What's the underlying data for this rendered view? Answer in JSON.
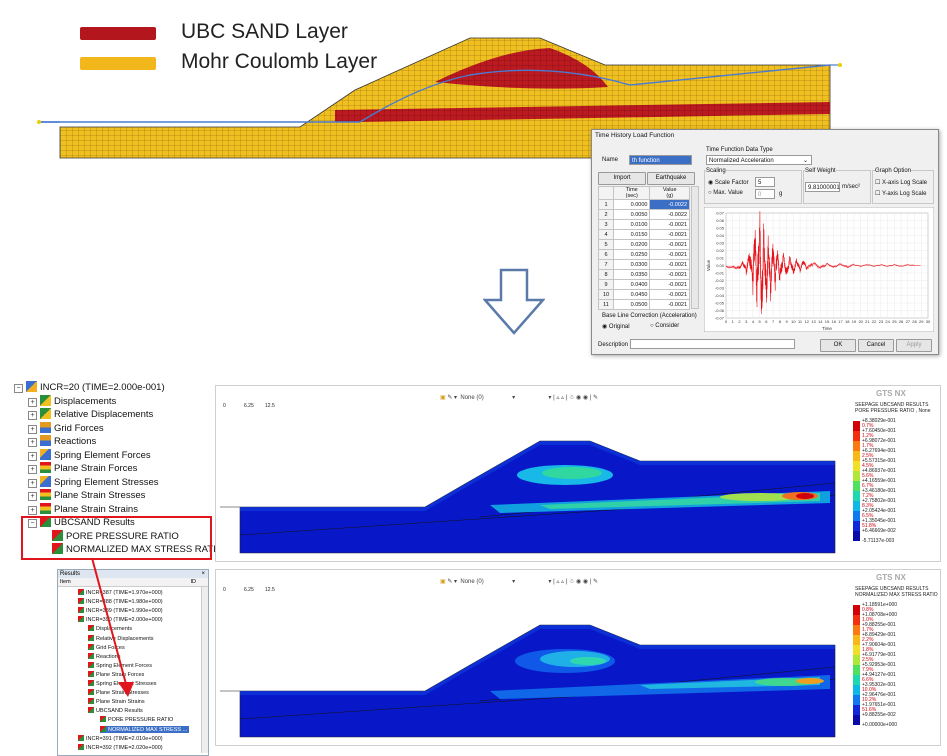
{
  "legend": {
    "items": [
      {
        "label": "UBC SAND Layer",
        "color": "#b3161c"
      },
      {
        "label": "Mohr Coulomb Layer",
        "color": "#f2b71a"
      }
    ]
  },
  "dialog": {
    "title": "Time History Load Function",
    "name_label": "Name",
    "name_value": "th function",
    "tab_import": "Import",
    "tab_earthquake": "Earthquake",
    "col_time": "Time\n(sec)",
    "col_time_a": "Time",
    "col_time_b": "(sec)",
    "col_value_a": "Value",
    "col_value_b": "(g)",
    "rows": [
      {
        "n": "1",
        "t": "0.0000",
        "v": "-0.0022"
      },
      {
        "n": "2",
        "t": "0.0050",
        "v": "-0.0022"
      },
      {
        "n": "3",
        "t": "0.0100",
        "v": "-0.0021"
      },
      {
        "n": "4",
        "t": "0.0150",
        "v": "-0.0021"
      },
      {
        "n": "5",
        "t": "0.0200",
        "v": "-0.0021"
      },
      {
        "n": "6",
        "t": "0.0250",
        "v": "-0.0021"
      },
      {
        "n": "7",
        "t": "0.0300",
        "v": "-0.0021"
      },
      {
        "n": "8",
        "t": "0.0350",
        "v": "-0.0021"
      },
      {
        "n": "9",
        "t": "0.0400",
        "v": "-0.0021"
      },
      {
        "n": "10",
        "t": "0.0450",
        "v": "-0.0021"
      },
      {
        "n": "11",
        "t": "0.0500",
        "v": "-0.0021"
      }
    ],
    "data_type_label": "Time Function Data Type",
    "data_type_value": "Normalized Acceleration",
    "scaling_label": "Scaling",
    "scale_factor_label": "Scale Factor",
    "scale_factor_value": "5",
    "max_value_label": "Max. Value",
    "max_value_value": "0",
    "max_value_unit": "g",
    "self_weight_label": "Self Weight",
    "self_weight_value": "9.81000001",
    "self_weight_unit": "m/sec²",
    "graph_option_label": "Graph Option",
    "xlog_label": "X-axis Log Scale",
    "ylog_label": "Y-axis Log Scale",
    "baseline_label": "Base Line Correction (Acceleration)",
    "original_label": "Original",
    "consider_label": "Consider",
    "description_label": "Description",
    "ok_label": "OK",
    "cancel_label": "Cancel",
    "apply_label": "Apply",
    "chart_y_label": "Value",
    "chart_x_label": "Time"
  },
  "chart_data": {
    "type": "line",
    "title": "",
    "xlabel": "Time",
    "ylabel": "Value",
    "xlim": [
      0,
      30
    ],
    "ylim": [
      -0.07,
      0.07
    ],
    "x_ticks": [
      "0",
      "1",
      "2",
      "3",
      "4",
      "5",
      "6",
      "7",
      "8",
      "9",
      "10",
      "11",
      "12",
      "13",
      "14",
      "15",
      "16",
      "17",
      "18",
      "19",
      "20",
      "21",
      "22",
      "23",
      "24",
      "25",
      "26",
      "27",
      "28",
      "29",
      "30"
    ],
    "y_ticks": [
      "0.07",
      "0.06",
      "0.05",
      "0.04",
      "0.03",
      "0.02",
      "0.01",
      "0.00",
      "-0.01",
      "-0.02",
      "-0.03",
      "-0.04",
      "-0.05",
      "-0.06",
      "-0.07"
    ],
    "series": [
      {
        "color": "#e8141c",
        "x": [
          0,
          1,
          2,
          2.5,
          3,
          3.5,
          4,
          4.3,
          4.6,
          5,
          5.3,
          5.6,
          6,
          6.3,
          6.6,
          7,
          7.3,
          7.6,
          8,
          8.5,
          9,
          9.5,
          10,
          10.5,
          11,
          11.5,
          12,
          13,
          14,
          15,
          16,
          17,
          18,
          19,
          20,
          21,
          22,
          23,
          24,
          25,
          26,
          27,
          28,
          29
        ],
        "y": [
          -0.002,
          -0.002,
          -0.003,
          0.004,
          -0.006,
          0.012,
          -0.02,
          0.035,
          -0.04,
          0.05,
          -0.055,
          0.038,
          -0.035,
          0.025,
          -0.03,
          0.02,
          -0.022,
          0.015,
          -0.016,
          0.012,
          -0.01,
          0.009,
          -0.008,
          0.006,
          -0.006,
          0.005,
          -0.004,
          0.003,
          -0.003,
          0.002,
          -0.002,
          0.002,
          -0.002,
          0.001,
          -0.001,
          0.001,
          -0.001,
          0.001,
          -0.001,
          0.001,
          -0.001,
          0.001,
          0,
          0
        ]
      }
    ]
  },
  "tree": {
    "root": "INCR=20 (TIME=2.000e-001)",
    "items": [
      {
        "label": "Displacements",
        "icon": "displacement-icon"
      },
      {
        "label": "Relative Displacements",
        "icon": "displacement-icon"
      },
      {
        "label": "Grid Forces",
        "icon": "force-icon"
      },
      {
        "label": "Reactions",
        "icon": "force-icon"
      },
      {
        "label": "Spring Element Forces",
        "icon": "spring-icon"
      },
      {
        "label": "Plane Strain Forces",
        "icon": "stress-icon"
      },
      {
        "label": "Spring Element Stresses",
        "icon": "spring-icon"
      },
      {
        "label": "Plane Strain Stresses",
        "icon": "stress-icon"
      },
      {
        "label": "Plane Strain Strains",
        "icon": "stress-icon"
      },
      {
        "label": "UBCSAND Results",
        "icon": "result-icon"
      },
      {
        "label": "PORE PRESSURE RATIO",
        "icon": "result-icon"
      },
      {
        "label": "NORMALIZED MAX STRESS RATIO",
        "icon": "result-icon"
      }
    ]
  },
  "results_panel": {
    "title": "Results",
    "col_item": "Item",
    "col_id": "ID",
    "lines": [
      "INCR=387 (TIME=1.970e+000)",
      "INCR=388 (TIME=1.980e+000)",
      "INCR=389 (TIME=1.990e+000)",
      "INCR=390 (TIME=2.000e+000)",
      "Displacements",
      "Relative Displacements",
      "Grid Forces",
      "Reactions",
      "Spring Element Forces",
      "Plane Strain Forces",
      "Spring Element Stresses",
      "Plane Strain Stresses",
      "Plane Strain Strains",
      "UBCSAND Results",
      "PORE PRESSURE RATIO",
      "NORMALIZED MAX STRESS ...",
      "INCR=391 (TIME=2.010e+000)",
      "INCR=392 (TIME=2.020e+000)"
    ]
  },
  "views": [
    {
      "toolbar_none": "None (0)",
      "brand": "GTS NX",
      "title1": "SEEPAGE UBCSAND RESULTS",
      "title2": "PORE PRESSURE RATIO , None",
      "scale_ticks": [
        "0",
        "6.25",
        "12.5"
      ],
      "values": [
        "+8.38029e-001",
        "+7.60450e-001",
        "+6.98072e-001",
        "+6.27694e-001",
        "+5.57315e-001",
        "+4.86937e-001",
        "+4.16559e-001",
        "+3.46180e-001",
        "+2.75802e-001",
        "+2.05424e-001",
        "+1.35045e-001",
        "+6.46669e-002",
        "-5.71137e-003"
      ],
      "percents": [
        "0.7%",
        "1.2%",
        "1.7%",
        "2.5%",
        "4.5%",
        "5.6%",
        "6.7%",
        "7.2%",
        "8.3%",
        "6.5%",
        "51.8%"
      ]
    },
    {
      "toolbar_none": "None (0)",
      "brand": "GTS NX",
      "title1": "SEEPAGE UBCSAND RESULTS",
      "title2": "NORMALIZED MAX STRESS RATIO",
      "scale_ticks": [
        "0",
        "6.25",
        "12.5"
      ],
      "values": [
        "+1.18591e+000",
        "+1.08708e+000",
        "+9.88255e-001",
        "+8.89429e-001",
        "+7.90604e-001",
        "+6.91779e-001",
        "+5.92953e-001",
        "+4.94127e-001",
        "+3.95302e-001",
        "+2.96476e-001",
        "+1.97651e-001",
        "+9.88255e-002",
        "+0.00000e+000"
      ],
      "percents": [
        "0.8%",
        "1.0%",
        "1.7%",
        "2.2%",
        "1.8%",
        "2.5%",
        "7.9%",
        "6.6%",
        "10.0%",
        "10.2%",
        "51.6%"
      ]
    }
  ]
}
